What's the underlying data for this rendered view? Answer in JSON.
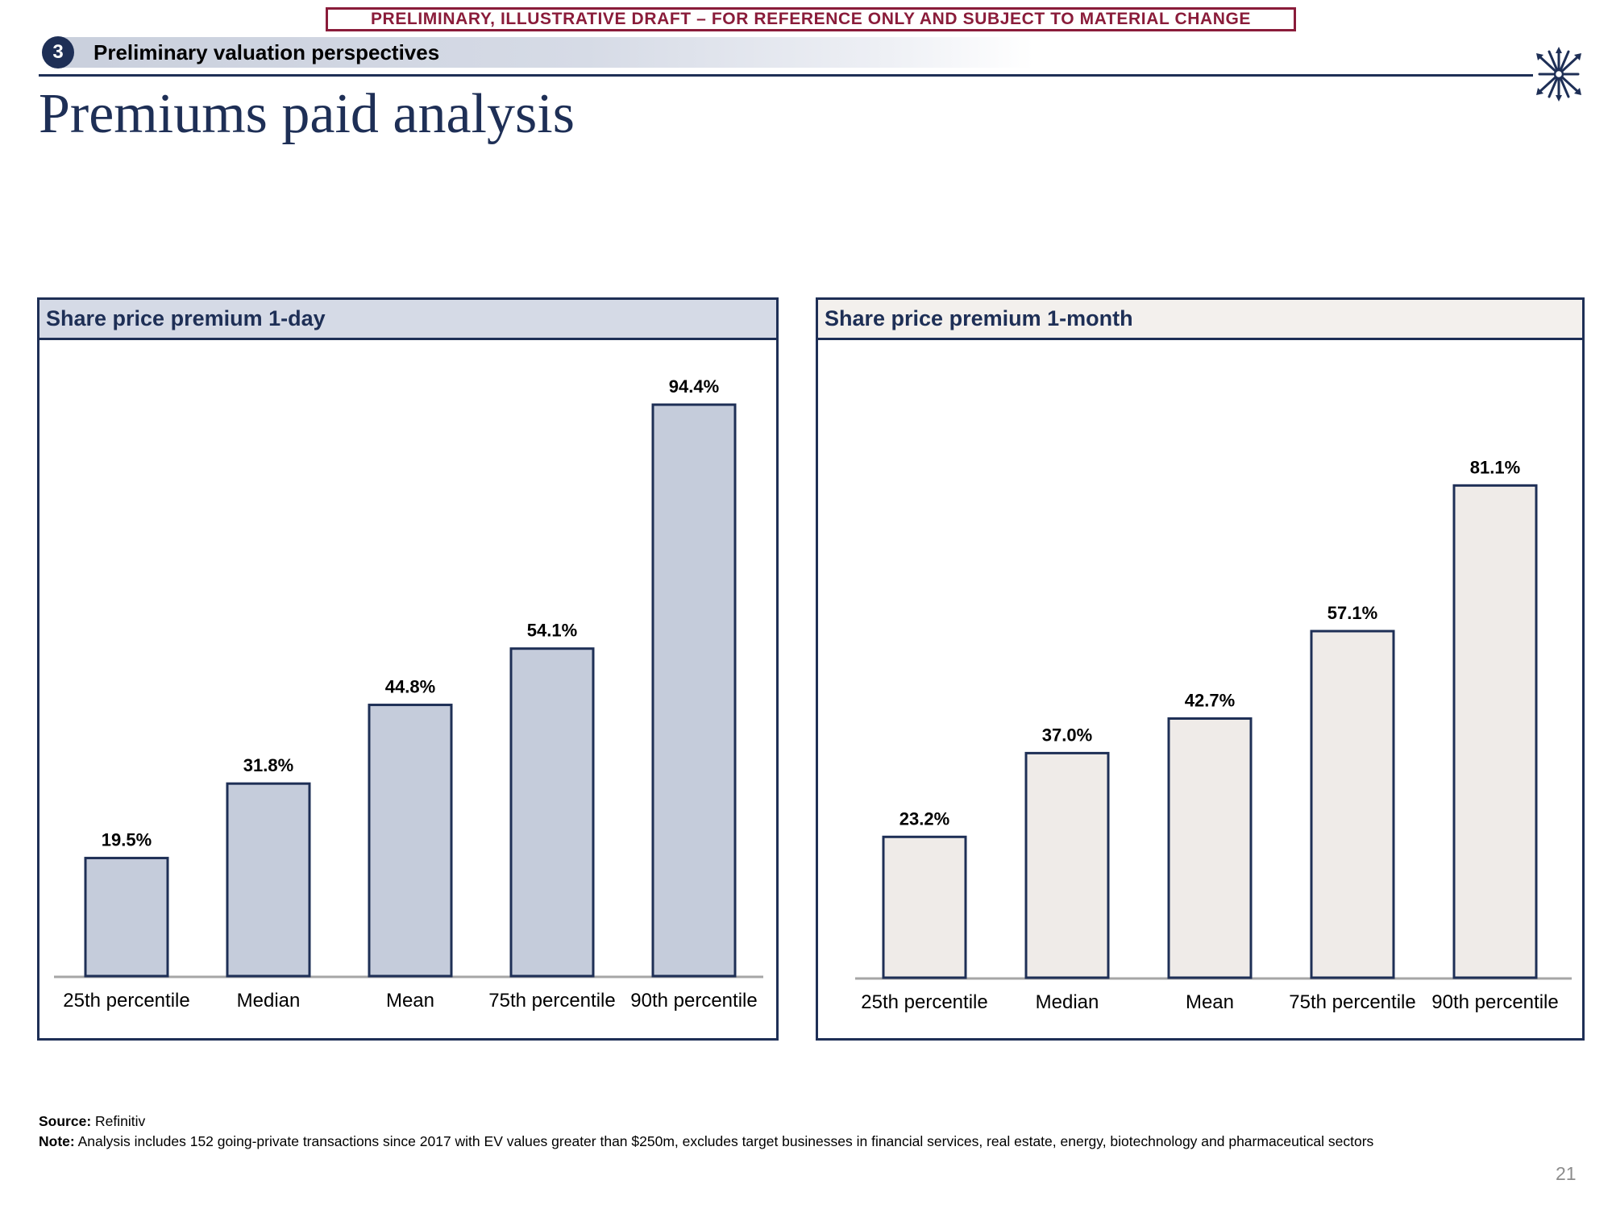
{
  "banner": "PRELIMINARY, ILLUSTRATIVE DRAFT – FOR REFERENCE ONLY AND SUBJECT TO MATERIAL CHANGE",
  "section": {
    "number": "3",
    "title": "Preliminary valuation perspectives"
  },
  "page_title": "Premiums paid analysis",
  "logo_icon": "arrows-bundle-logo-icon",
  "colors": {
    "navy": "#1e2f56",
    "banner_red": "#8a1c3a",
    "bar_left": "#c5ccdb",
    "bar_right": "#efebe8"
  },
  "chart_data": [
    {
      "type": "bar",
      "title": "Share price premium 1-day",
      "categories": [
        "25th percentile",
        "Median",
        "Mean",
        "75th percentile",
        "90th percentile"
      ],
      "values": [
        19.5,
        31.8,
        44.8,
        54.1,
        94.4
      ],
      "labels": [
        "19.5%",
        "31.8%",
        "44.8%",
        "54.1%",
        "94.4%"
      ],
      "xlabel": "",
      "ylabel": "",
      "ylim": [
        0,
        100
      ],
      "grid": false,
      "legend": "none"
    },
    {
      "type": "bar",
      "title": "Share price premium 1-month",
      "categories": [
        "25th percentile",
        "Median",
        "Mean",
        "75th percentile",
        "90th percentile"
      ],
      "values": [
        23.2,
        37.0,
        42.7,
        57.1,
        81.1
      ],
      "labels": [
        "23.2%",
        "37.0%",
        "42.7%",
        "57.1%",
        "81.1%"
      ],
      "xlabel": "",
      "ylabel": "",
      "ylim": [
        0,
        100
      ],
      "grid": false,
      "legend": "none"
    }
  ],
  "footer": {
    "source_label": "Source:",
    "source_text": "Refinitiv",
    "note_label": "Note:",
    "note_text": "Analysis includes 152 going-private transactions since 2017 with EV values greater than $250m, excludes target businesses in financial services, real estate, energy, biotechnology and pharmaceutical sectors"
  },
  "page_number": "21"
}
